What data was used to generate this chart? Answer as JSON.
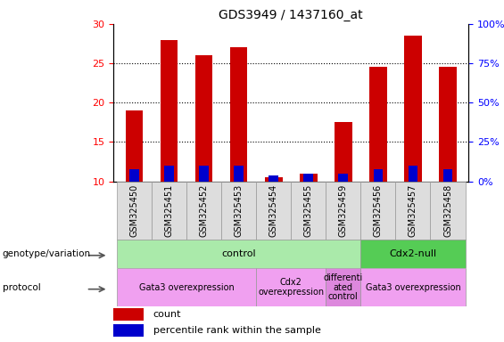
{
  "title": "GDS3949 / 1437160_at",
  "samples": [
    "GSM325450",
    "GSM325451",
    "GSM325452",
    "GSM325453",
    "GSM325454",
    "GSM325455",
    "GSM325459",
    "GSM325456",
    "GSM325457",
    "GSM325458"
  ],
  "count_values": [
    19.0,
    28.0,
    26.0,
    27.0,
    10.5,
    11.0,
    17.5,
    24.5,
    28.5,
    24.5
  ],
  "percentile_values": [
    11.5,
    12.0,
    12.0,
    12.0,
    10.7,
    11.0,
    11.0,
    11.5,
    12.0,
    11.5
  ],
  "y_min": 10,
  "y_max": 30,
  "y_ticks_left": [
    10,
    15,
    20,
    25,
    30
  ],
  "y_ticks_right": [
    0,
    25,
    50,
    75,
    100
  ],
  "bar_color": "#cc0000",
  "percentile_color": "#0000cc",
  "bar_width": 0.5,
  "genotype_groups": [
    {
      "text": "control",
      "span": [
        0,
        6
      ],
      "color": "#aaeaaa"
    },
    {
      "text": "Cdx2-null",
      "span": [
        7,
        9
      ],
      "color": "#55cc55"
    }
  ],
  "protocol_groups": [
    {
      "text": "Gata3 overexpression",
      "span": [
        0,
        3
      ],
      "color": "#f0a0f0"
    },
    {
      "text": "Cdx2\noverexpression",
      "span": [
        4,
        5
      ],
      "color": "#f0a0f0"
    },
    {
      "text": "differenti\nated\ncontrol",
      "span": [
        6,
        6
      ],
      "color": "#dd88dd"
    },
    {
      "text": "Gata3 overexpression",
      "span": [
        7,
        9
      ],
      "color": "#f0a0f0"
    }
  ],
  "genotype_label": "genotype/variation",
  "protocol_label": "protocol",
  "legend_count_color": "#cc0000",
  "legend_percentile_color": "#0000cc",
  "title_fontsize": 10,
  "tick_fontsize": 8,
  "sample_label_fontsize": 7
}
